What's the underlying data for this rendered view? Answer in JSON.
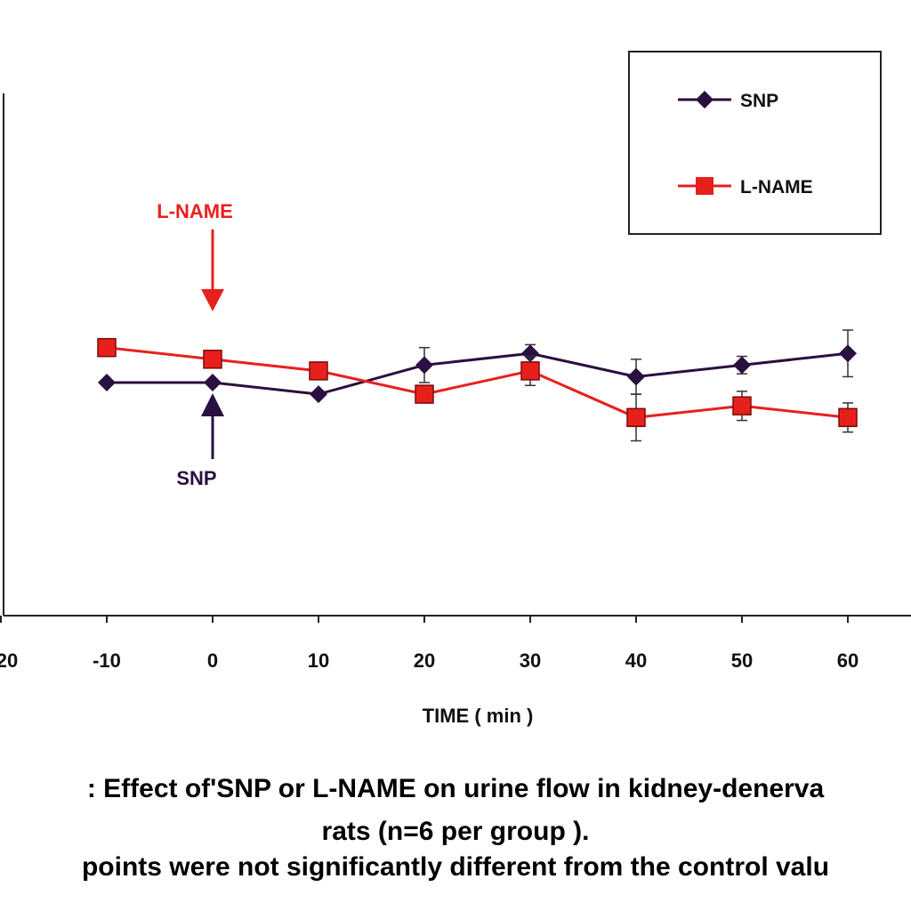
{
  "colors": {
    "snp": "#2a1040",
    "lname": "#e8201c",
    "axis": "#222222"
  },
  "chart_data": {
    "type": "line",
    "x": [
      -10,
      0,
      10,
      20,
      30,
      40,
      50,
      60
    ],
    "x_ticks": [
      "20",
      "-10",
      "0",
      "10",
      "20",
      "30",
      "40",
      "50",
      "60"
    ],
    "xlabel": "TIME ( min )",
    "ylabel": "",
    "grid": false,
    "legend_position": "top-right",
    "series": [
      {
        "name": "SNP",
        "marker": "diamond",
        "values": [
          4.0,
          4.0,
          3.8,
          4.3,
          4.5,
          4.1,
          4.3,
          4.5
        ],
        "errors": [
          0.0,
          0.0,
          0.0,
          0.3,
          0.15,
          0.3,
          0.15,
          0.4
        ]
      },
      {
        "name": "L-NAME",
        "marker": "square",
        "values": [
          4.6,
          4.4,
          4.2,
          3.8,
          4.2,
          3.4,
          3.6,
          3.4
        ],
        "errors": [
          0.0,
          0.0,
          0.0,
          0.0,
          0.25,
          0.4,
          0.25,
          0.25
        ]
      }
    ],
    "annotations": [
      {
        "text": "L-NAME",
        "x": 0,
        "direction": "down",
        "series": "lname"
      },
      {
        "text": "SNP",
        "x": 0,
        "direction": "up",
        "series": "snp"
      }
    ]
  },
  "caption": {
    "line1": ": Effect of'SNP or L-NAME on urine flow in kidney-denerva",
    "line2": "rats (n=6 per group ).",
    "line3": "points were not significantly different from the control valu"
  }
}
